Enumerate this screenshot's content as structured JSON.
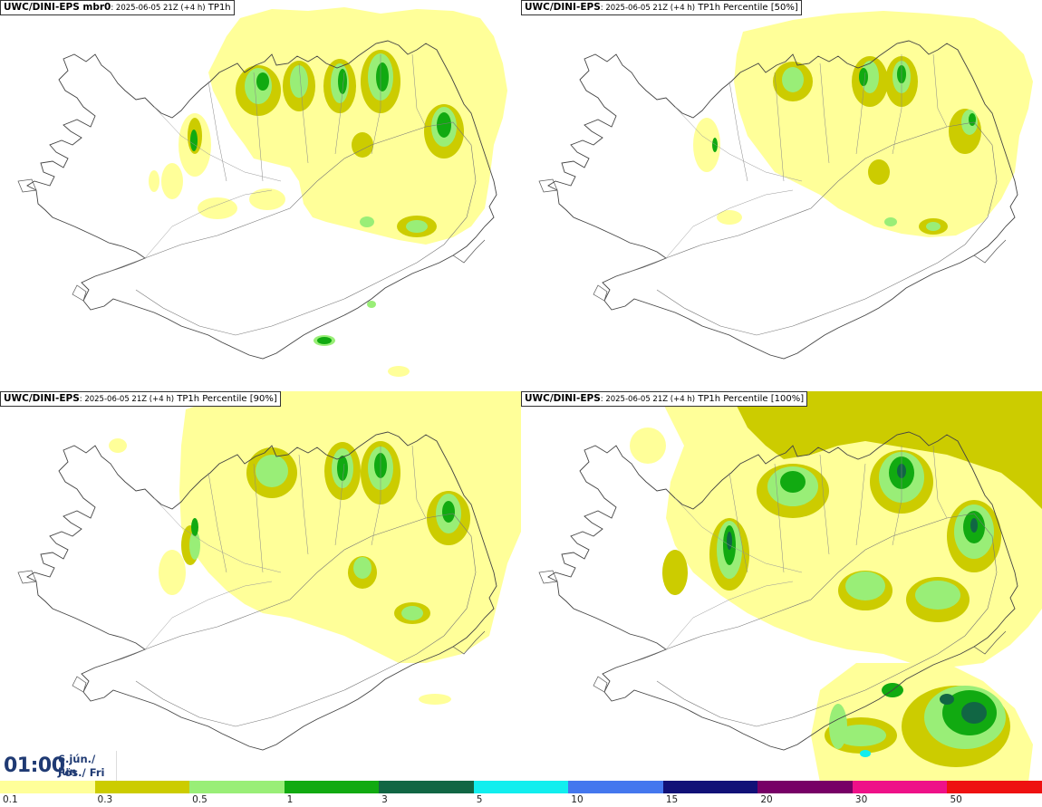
{
  "panels": [
    {
      "model": "UWC/DINI-EPS mbr0",
      "run": ": 2025-06-05 21Z (+4 h)",
      "variable": " TP1h"
    },
    {
      "model": "UWC/DINI-EPS",
      "run": ": 2025-06-05 21Z (+4 h)",
      "variable": " TP1h Percentile [50%]"
    },
    {
      "model": "UWC/DINI-EPS",
      "run": ": 2025-06-05 21Z (+4 h)",
      "variable": " TP1h Percentile [90%]"
    },
    {
      "model": "UWC/DINI-EPS",
      "run": ": 2025-06-05 21Z (+4 h)",
      "variable": " TP1h Percentile [100%]"
    }
  ],
  "clock": {
    "time": "01:00",
    "date_line1": "6.jún./ Jun",
    "date_line2": "Fös./ Fri"
  },
  "legend": {
    "labels": [
      "0.1",
      "0.3",
      "0.5",
      "1",
      "3",
      "5",
      "10",
      "15",
      "20",
      "30",
      "50"
    ],
    "colors": [
      "#ffff99",
      "#cccc00",
      "#99ee77",
      "#11aa11",
      "#116644",
      "#11eeee",
      "#4477ee",
      "#111177",
      "#770066",
      "#ee1188",
      "#ee1111"
    ]
  },
  "map": {
    "region": "Iceland",
    "colors": {
      "light_yellow": "#ffff99",
      "olive": "#cccc00",
      "light_green": "#99ee77",
      "green": "#11aa11",
      "dark_green": "#116644",
      "cyan": "#11eeee",
      "coast": "#444444"
    }
  }
}
